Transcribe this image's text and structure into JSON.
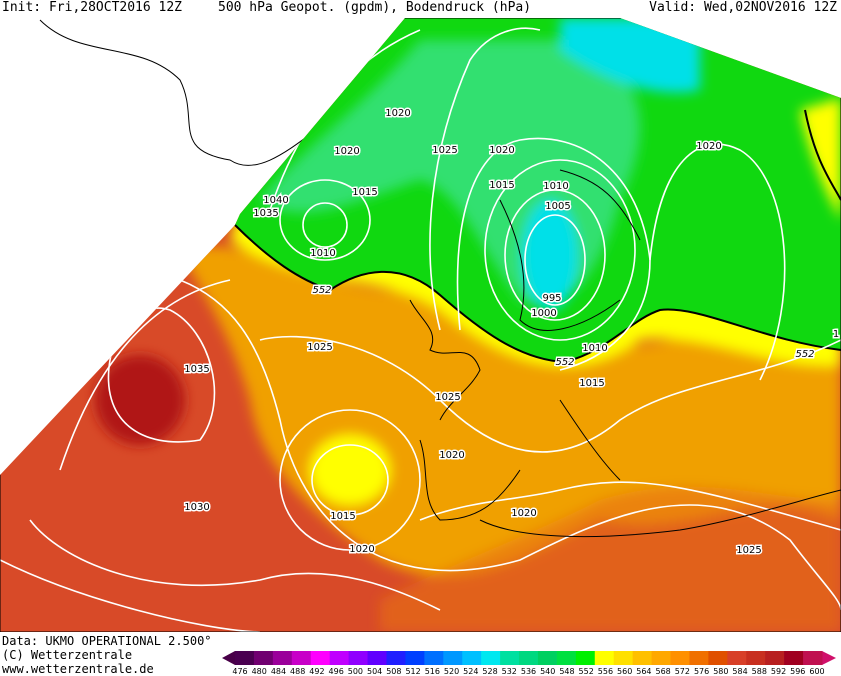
{
  "header": {
    "init": "Init: Fri,28OCT2016 12Z",
    "title": "500 hPa Geopot. (gpdm), Bodendruck (hPa)",
    "valid": "Valid: Wed,02NOV2016 12Z"
  },
  "footer": {
    "data_source": "Data: UKMO OPERATIONAL 2.500°",
    "copyright": "(C) Wetterzentrale",
    "url": "www.wetterzentrale.de"
  },
  "map": {
    "isobar_labels": [
      "1020",
      "1020",
      "1025",
      "1020",
      "1020",
      "1015",
      "1040",
      "1035",
      "1010",
      "1015",
      "1010",
      "1005",
      "995",
      "1000",
      "1010",
      "1025",
      "1035",
      "1015",
      "1025",
      "1020",
      "1015",
      "1030",
      "1020",
      "1020",
      "1025",
      "1"
    ],
    "geopotential_labels": [
      "552",
      "552",
      "552"
    ],
    "colors": {
      "green": "#10d810",
      "light_green": "#30e070",
      "cyan": "#00e0e8",
      "yellow": "#ffff00",
      "orange": "#f0a000",
      "dark_orange": "#e87010",
      "red": "#d84a28",
      "dark_red": "#b01818"
    }
  },
  "colorbar": {
    "labels": [
      "476",
      "480",
      "484",
      "488",
      "492",
      "496",
      "500",
      "504",
      "508",
      "512",
      "516",
      "520",
      "524",
      "528",
      "532",
      "536",
      "540",
      "548",
      "552",
      "556",
      "560",
      "564",
      "568",
      "572",
      "576",
      "580",
      "584",
      "588",
      "592",
      "596",
      "600"
    ],
    "colors": [
      "#4a0050",
      "#700070",
      "#9a009a",
      "#c800c8",
      "#ff00ff",
      "#c000ff",
      "#9000ff",
      "#6000ff",
      "#2020ff",
      "#0040ff",
      "#0070ff",
      "#0098ff",
      "#00c0ff",
      "#00e8f0",
      "#00e0a0",
      "#00d880",
      "#00d060",
      "#00e040",
      "#00f000",
      "#ffff00",
      "#ffe000",
      "#ffc000",
      "#ffa800",
      "#ff9000",
      "#f07000",
      "#e05000",
      "#d84028",
      "#c83020",
      "#b82020",
      "#a00020",
      "#c01050"
    ],
    "low_end_color": "#480048",
    "high_end_color": "#d0106a"
  }
}
